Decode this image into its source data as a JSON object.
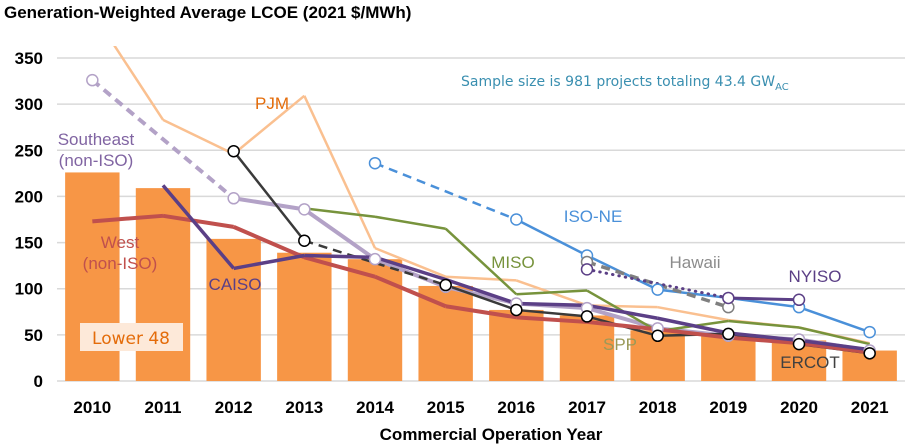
{
  "chart_data": {
    "type": "bar+line",
    "title": "Generation-Weighted Average LCOE (2021 $/MWh)",
    "xlabel": "Commercial Operation Year",
    "ylabel": "",
    "ylim": [
      0,
      350
    ],
    "yticks": [
      0,
      50,
      100,
      150,
      200,
      250,
      300,
      350
    ],
    "grid": true,
    "categories": [
      "2010",
      "2011",
      "2012",
      "2013",
      "2014",
      "2015",
      "2016",
      "2017",
      "2018",
      "2019",
      "2020",
      "2021"
    ],
    "annotation": {
      "text": "Sample size is 981 projects totaling 43.4 GW",
      "subscript": "AC",
      "color": "#3a8fb0"
    },
    "bars": {
      "name": "Lower 48",
      "color": "#f79646",
      "label_color": "#e46c0a",
      "label_bg": "#fde9d9",
      "values": [
        226,
        209,
        154,
        139,
        132,
        103,
        77,
        71,
        55,
        51,
        44,
        33
      ]
    },
    "series": [
      {
        "name": "PJM",
        "label": [
          "PJM"
        ],
        "color": "#fac090",
        "label_color": "#e46c0a",
        "width": 2.5,
        "markers": false,
        "values": [
          400,
          283,
          246,
          309,
          144,
          113,
          109,
          82,
          80,
          66,
          58,
          41
        ],
        "dashed_segments": []
      },
      {
        "name": "Southeast (non-ISO)",
        "label": [
          "Southeast",
          "(non-ISO)"
        ],
        "color": "#b3a2c7",
        "label_color": "#8064a2",
        "width": 4,
        "markers": true,
        "values": [
          326,
          null,
          198,
          186,
          132,
          102,
          84,
          79,
          57,
          49,
          45,
          33
        ],
        "dashed_segments": [
          [
            0,
            2
          ]
        ],
        "marker_idx": [
          0,
          2,
          3,
          4,
          5,
          6,
          7,
          8,
          9,
          10,
          11
        ]
      },
      {
        "name": "SPP",
        "label": [
          "SPP"
        ],
        "color": "#3a3a3a",
        "label_color": "#9a9a58",
        "width": 2.5,
        "markers": true,
        "values": [
          null,
          null,
          249,
          152,
          null,
          104,
          77,
          70,
          49,
          51,
          40,
          30
        ],
        "dashed_segments": [
          [
            3,
            5
          ]
        ],
        "marker_idx": [
          2,
          3,
          5,
          6,
          7,
          8,
          9,
          10,
          11
        ],
        "marker_stroke": "#000000"
      },
      {
        "name": "ISO-NE",
        "label": [
          "ISO-NE"
        ],
        "color": "#4a90d9",
        "label_color": "#4a90d9",
        "width": 2.5,
        "markers": true,
        "values": [
          null,
          null,
          null,
          null,
          236,
          null,
          175,
          136,
          99,
          90,
          80,
          53
        ],
        "dashed_segments": [
          [
            4,
            6
          ]
        ],
        "marker_idx": [
          4,
          6,
          7,
          8,
          10,
          11
        ]
      },
      {
        "name": "MISO",
        "label": [
          "MISO"
        ],
        "color": "#77933c",
        "label_color": "#77933c",
        "width": 2.5,
        "markers": false,
        "values": [
          null,
          null,
          null,
          187,
          178,
          165,
          94,
          98,
          54,
          65,
          58,
          40
        ],
        "dashed_segments": []
      },
      {
        "name": "Hawaii",
        "label": [
          "Hawaii"
        ],
        "color": "#7f7f7f",
        "label_color": "#8c8c8c",
        "width": 3.5,
        "markers": true,
        "values": [
          null,
          null,
          null,
          null,
          null,
          null,
          null,
          129,
          null,
          80,
          null,
          null
        ],
        "dashed_segments": [
          [
            7,
            9
          ]
        ],
        "marker_idx": [
          7,
          9
        ]
      },
      {
        "name": "NYISO",
        "label": [
          "NYISO"
        ],
        "color": "#5b3f86",
        "label_color": "#5b3f86",
        "width": 3,
        "markers": true,
        "values": [
          null,
          null,
          null,
          null,
          null,
          null,
          null,
          121,
          null,
          90,
          88,
          null
        ],
        "dotted_segments": [
          [
            7,
            9
          ]
        ],
        "dashed_segments": [],
        "marker_idx": [
          7,
          9,
          10
        ]
      },
      {
        "name": "West (non-ISO)",
        "label": [
          "West",
          "(non-ISO)"
        ],
        "color": "#c0504d",
        "label_color": "#c0504d",
        "width": 4,
        "markers": false,
        "values": [
          173,
          179,
          167,
          134,
          113,
          81,
          69,
          64,
          56,
          47,
          41,
          31
        ],
        "dashed_segments": []
      },
      {
        "name": "CAISO",
        "label": [
          "CAISO"
        ],
        "color": "#5b3f86",
        "label_color": "#5b3f86",
        "width": 3.5,
        "markers": false,
        "values": [
          null,
          212,
          122,
          136,
          134,
          110,
          84,
          82,
          68,
          52,
          44,
          34
        ],
        "dashed_segments": []
      },
      {
        "name": "ERCOT",
        "label": [
          "ERCOT"
        ],
        "color": "#404040",
        "label_color": "#404040",
        "width": 0,
        "markers": false,
        "values": [],
        "dashed_segments": []
      }
    ]
  }
}
